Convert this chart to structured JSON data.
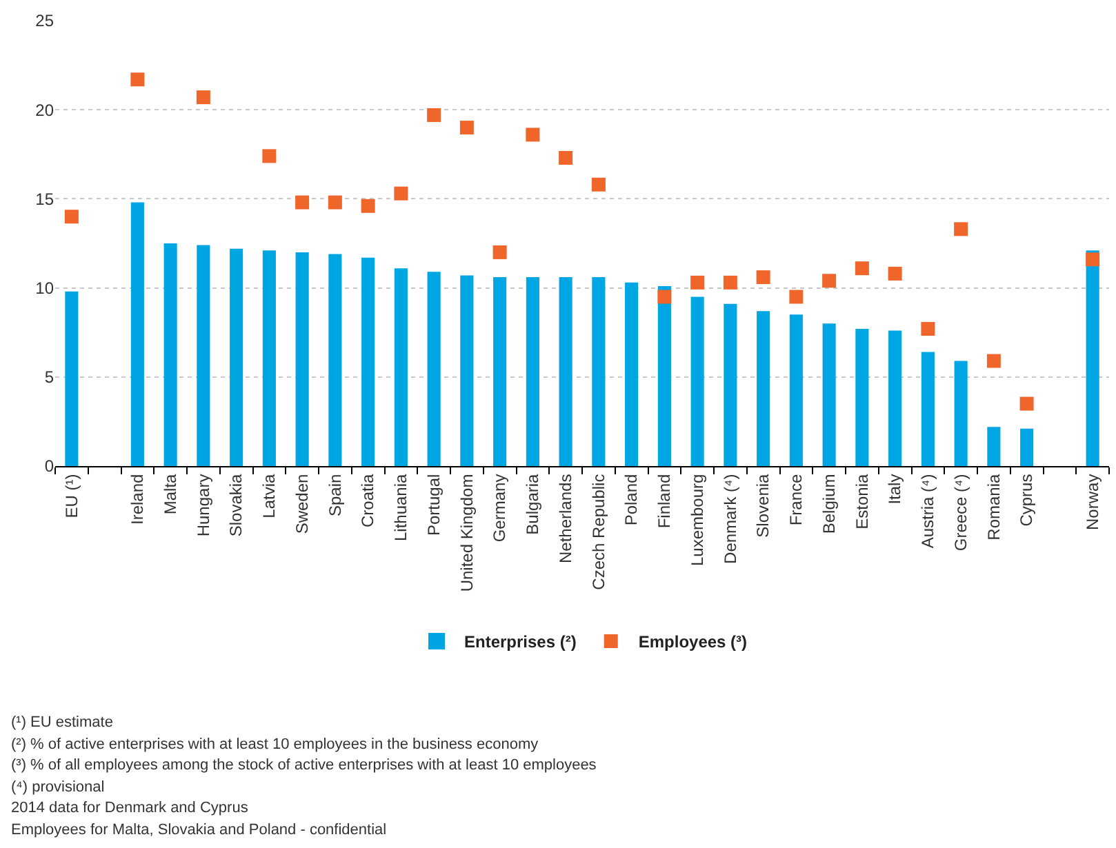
{
  "chart_data": {
    "type": "bar",
    "categories": [
      "EU (¹)",
      null,
      "Ireland",
      "Malta",
      "Hungary",
      "Slovakia",
      "Latvia",
      "Sweden",
      "Spain",
      "Croatia",
      "Lithuania",
      "Portugal",
      "United Kingdom",
      "Germany",
      "Bulgaria",
      "Netherlands",
      "Czech Republic",
      "Poland",
      "Finland",
      "Luxembourg",
      "Denmark (⁴)",
      "Slovenia",
      "France",
      "Belgium",
      "Estonia",
      "Italy",
      "Austria (⁴)",
      "Greece (⁴)",
      "Romania",
      "Cyprus",
      null,
      "Norway"
    ],
    "series": [
      {
        "name": "Enterprises (²)",
        "color": "#00a5e3",
        "values": [
          9.8,
          null,
          14.8,
          12.5,
          12.4,
          12.2,
          12.1,
          12.0,
          11.9,
          11.7,
          11.1,
          10.9,
          10.7,
          10.6,
          10.6,
          10.6,
          10.6,
          10.3,
          10.1,
          9.5,
          9.1,
          8.7,
          8.5,
          8.0,
          7.7,
          7.6,
          6.4,
          5.9,
          2.2,
          2.1,
          null,
          12.1
        ]
      },
      {
        "name": "Employees (³)",
        "type": "scatter",
        "color": "#f0662a",
        "values": [
          14.0,
          null,
          21.7,
          null,
          20.7,
          null,
          17.4,
          14.8,
          14.8,
          14.6,
          15.3,
          19.7,
          19.0,
          12.0,
          18.6,
          17.3,
          15.8,
          null,
          9.5,
          10.3,
          10.3,
          10.6,
          9.5,
          10.4,
          11.1,
          10.8,
          7.7,
          13.3,
          5.9,
          3.5,
          null,
          11.6
        ]
      }
    ],
    "ylim": [
      0,
      25
    ],
    "yticks": [
      0,
      5,
      10,
      15,
      20,
      25
    ],
    "grid": "y",
    "legend": "bottom",
    "marker": "square",
    "annotations": [
      "(¹) EU estimate",
      "(²) % of active enterprises with at least 10 employees in the business economy",
      "(³) % of all employees among the stock of active enterprises with at least 10 employees",
      "(⁴) provisional",
      "2014 data for Denmark and Cyprus",
      "Employees for Malta, Slovakia and Poland - confidential"
    ]
  }
}
